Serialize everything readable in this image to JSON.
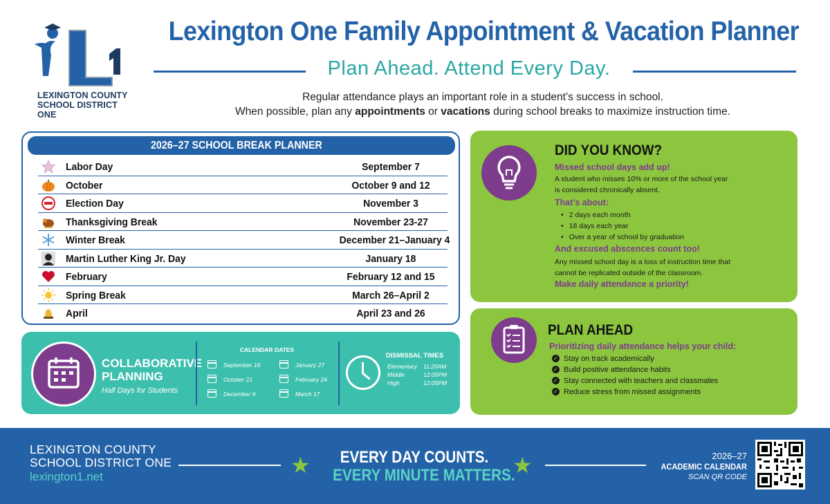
{
  "logo": {
    "mark": "L1",
    "district_line1": "LEXINGTON COUNTY",
    "district_line2": "SCHOOL DISTRICT ONE"
  },
  "header": {
    "title": "Lexington One Family Appointment & Vacation Planner",
    "subtitle": "Plan Ahead. Attend Every Day.",
    "intro_line1": "Regular attendance plays an important role in a student’s success in school.",
    "intro_line2_a": "When possible, plan any ",
    "intro_line2_b": "appointments",
    "intro_line2_c": " or ",
    "intro_line2_d": "vacations",
    "intro_line2_e": " during school breaks to maximize instruction time."
  },
  "planner": {
    "title": "2026–27 SCHOOL BREAK PLANNER",
    "breaks": [
      {
        "name": "Labor Day",
        "date": "September 7",
        "icon": "star-icon"
      },
      {
        "name": "October",
        "date": "October 9 and 12",
        "icon": "pumpkin-icon"
      },
      {
        "name": "Election Day",
        "date": "November 3",
        "icon": "vote-badge-icon"
      },
      {
        "name": "Thanksgiving Break",
        "date": "November 23-27",
        "icon": "turkey-icon"
      },
      {
        "name": "Winter Break",
        "date": "December 21–January 4",
        "icon": "snowflake-icon"
      },
      {
        "name": "Martin Luther King Jr. Day",
        "date": "January 18",
        "icon": "portrait-icon"
      },
      {
        "name": "February",
        "date": "February 12 and 15",
        "icon": "heart-icon"
      },
      {
        "name": "Spring Break",
        "date": "March 26–April 2",
        "icon": "sun-icon"
      },
      {
        "name": "April",
        "date": "April 23 and 26",
        "icon": "bell-icon"
      }
    ]
  },
  "collab": {
    "title_line1": "COLLABORATIVE",
    "title_line2": "PLANNING",
    "subtitle": "Half Days for Students",
    "calendar_heading": "CALENDAR DATES",
    "dates_col1": [
      "September 16",
      "October 21",
      "December 9"
    ],
    "dates_col2": [
      "January 27",
      "February 24",
      "March 17"
    ],
    "dismissal_heading": "DISMISSAL TIMES",
    "dismissal": [
      {
        "level": "Elementary",
        "time": "11:20AM"
      },
      {
        "level": "Middle",
        "time": "12:05PM"
      },
      {
        "level": "High",
        "time": "12:05PM"
      }
    ]
  },
  "know": {
    "title": "DID YOU KNOW?",
    "lead": "Missed school days add up!",
    "text1_line1": "A student who misses 10% or more of the school year",
    "text1_line2": "is considered chronically absent.",
    "about": "That’s about:",
    "bullets": [
      "2 days each month",
      "18 days each year",
      "Over a year of school by graduation"
    ],
    "excused": "And excused abscences count too!",
    "text2_line1": "Any missed school day is a loss of instruction time that",
    "text2_line2": "cannot be replicated outside of the classroom.",
    "priority": "Make daily attendance a priority!"
  },
  "plan": {
    "title": "PLAN AHEAD",
    "lead": "Prioritizing daily attendance helps your child:",
    "items": [
      "Stay on track academically",
      "Build positive attendance habits",
      "Stay connected with teachers and classmates",
      "Reduce stress from missed assignments"
    ]
  },
  "footer": {
    "district_line1": "LEXINGTON COUNTY",
    "district_line2": "SCHOOL DISTRICT ONE",
    "url": "lexington1.net",
    "slogan1": "EVERY DAY COUNTS.",
    "slogan2": "EVERY MINUTE MATTERS.",
    "year": "2026–27",
    "calendar": "ACADEMIC CALENDAR",
    "scan": "SCAN QR CODE"
  },
  "colors": {
    "brand_blue": "#2462a8",
    "teal": "#3dbfad",
    "green": "#8cc63f",
    "purple": "#7d3c8c"
  }
}
